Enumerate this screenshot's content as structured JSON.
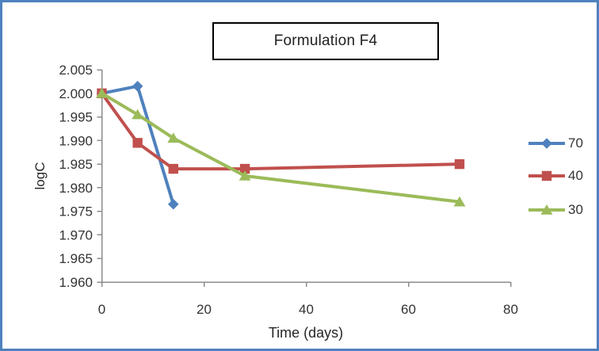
{
  "window": {
    "border_color": "#4f81bd",
    "background_color": "#ffffff"
  },
  "chart_data": {
    "type": "line",
    "title": "Formulation F4",
    "xlabel": "Time (days)",
    "ylabel": "logC",
    "xlim": [
      0,
      80
    ],
    "ylim": [
      1.96,
      2.005
    ],
    "x_ticks": [
      0,
      20,
      40,
      60,
      80
    ],
    "x_tick_labels": [
      "0",
      "20",
      "40",
      "60",
      "80"
    ],
    "y_ticks": [
      1.96,
      1.965,
      1.97,
      1.975,
      1.98,
      1.985,
      1.99,
      1.995,
      2.0,
      2.005
    ],
    "y_tick_labels": [
      "1.960",
      "1.965",
      "1.970",
      "1.975",
      "1.980",
      "1.985",
      "1.990",
      "1.995",
      "2.000",
      "2.005"
    ],
    "grid": false,
    "legend_position": "right",
    "axis_color": "#8c8c8c",
    "tick_label_color": "#333333",
    "series": [
      {
        "name": "70",
        "color": "#4f81bd",
        "marker": "diamond",
        "x": [
          0,
          7,
          14
        ],
        "y": [
          2.0,
          2.0015,
          1.9765
        ]
      },
      {
        "name": "40",
        "color": "#c0504d",
        "marker": "square",
        "x": [
          0,
          7,
          14,
          28,
          70
        ],
        "y": [
          2.0,
          1.9895,
          1.984,
          1.984,
          1.985
        ]
      },
      {
        "name": "30",
        "color": "#9bbb59",
        "marker": "triangle",
        "x": [
          0,
          7,
          14,
          28,
          70
        ],
        "y": [
          2.0,
          1.9955,
          1.9905,
          1.9825,
          1.977
        ]
      }
    ]
  }
}
